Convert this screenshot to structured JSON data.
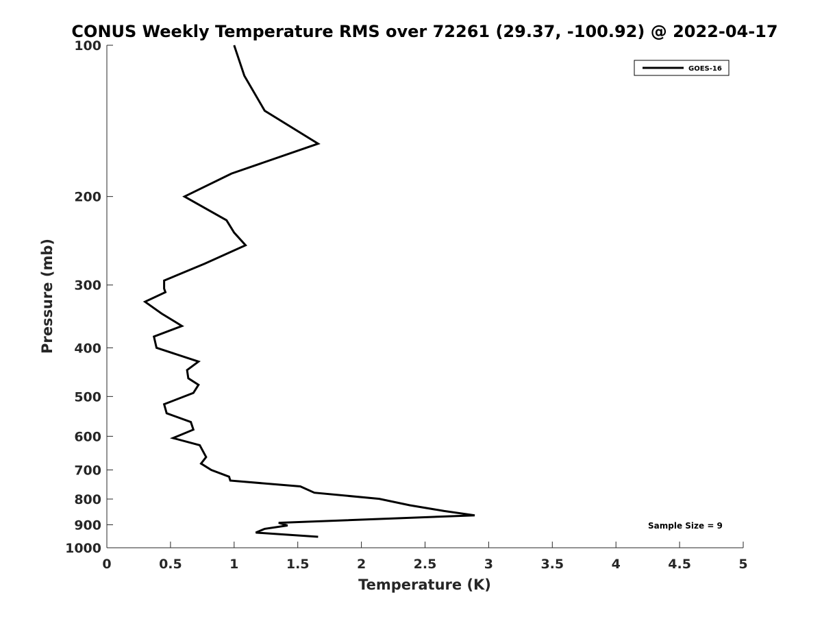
{
  "chart_data": {
    "type": "line",
    "title": "CONUS Weekly Temperature RMS over 72261 (29.37, -100.92) @ 2022-04-17",
    "xlabel": "Temperature (K)",
    "ylabel": "Pressure (mb)",
    "xlim": [
      0,
      5
    ],
    "ylim": [
      100,
      1000
    ],
    "y_scale": "log",
    "y_reversed": true,
    "x_ticks": [
      "0",
      "0.5",
      "1",
      "1.5",
      "2",
      "2.5",
      "3",
      "3.5",
      "4",
      "4.5",
      "5"
    ],
    "x_tick_values": [
      0,
      0.5,
      1,
      1.5,
      2,
      2.5,
      3,
      3.5,
      4,
      4.5,
      5
    ],
    "y_ticks": [
      "100",
      "200",
      "300",
      "400",
      "500",
      "600",
      "700",
      "800",
      "900",
      "1000"
    ],
    "y_tick_values": [
      100,
      200,
      300,
      400,
      500,
      600,
      700,
      800,
      900,
      1000
    ],
    "grid": false,
    "legend_position": "top-right",
    "annotation": "Sample Size = 9",
    "series": [
      {
        "name": "GOES-16",
        "color": "#000000",
        "points": [
          [
            1.0,
            100
          ],
          [
            1.08,
            115
          ],
          [
            1.24,
            135
          ],
          [
            1.66,
            157
          ],
          [
            0.98,
            180
          ],
          [
            0.61,
            200
          ],
          [
            0.94,
            223
          ],
          [
            1.0,
            236
          ],
          [
            1.09,
            250
          ],
          [
            0.77,
            272
          ],
          [
            0.45,
            294
          ],
          [
            0.45,
            305
          ],
          [
            0.46,
            310
          ],
          [
            0.3,
            324
          ],
          [
            0.43,
            342
          ],
          [
            0.59,
            362
          ],
          [
            0.37,
            380
          ],
          [
            0.39,
            400
          ],
          [
            0.72,
            426
          ],
          [
            0.63,
            443
          ],
          [
            0.64,
            460
          ],
          [
            0.72,
            474
          ],
          [
            0.68,
            492
          ],
          [
            0.45,
            518
          ],
          [
            0.47,
            540
          ],
          [
            0.66,
            562
          ],
          [
            0.68,
            582
          ],
          [
            0.52,
            605
          ],
          [
            0.73,
            625
          ],
          [
            0.78,
            660
          ],
          [
            0.74,
            680
          ],
          [
            0.82,
            700
          ],
          [
            0.96,
            722
          ],
          [
            0.97,
            735
          ],
          [
            1.52,
            755
          ],
          [
            1.63,
            777
          ],
          [
            2.14,
            799
          ],
          [
            2.38,
            823
          ],
          [
            2.65,
            845
          ],
          [
            2.89,
            862
          ],
          [
            1.35,
            892
          ],
          [
            1.42,
            903
          ],
          [
            1.24,
            917
          ],
          [
            1.17,
            933
          ],
          [
            1.66,
            951
          ]
        ]
      }
    ]
  }
}
